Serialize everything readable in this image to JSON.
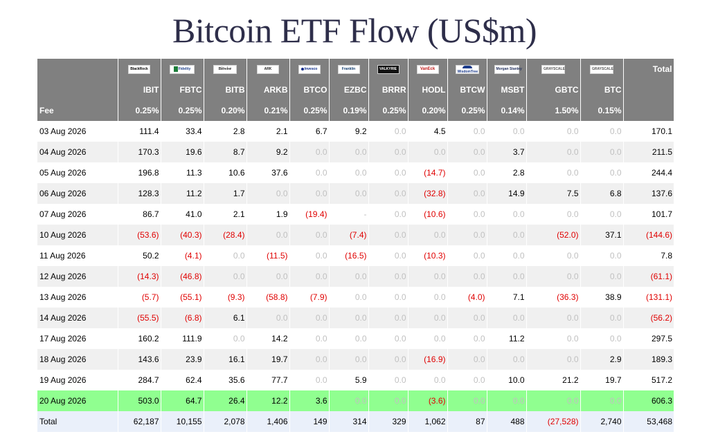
{
  "title": "Bitcoin ETF Flow (US$m)",
  "header": {
    "logos": [
      {
        "icon": "blackrock-logo",
        "text": "BlackRock"
      },
      {
        "icon": "fidelity-logo",
        "text": "Fidelity"
      },
      {
        "icon": "bitwise-logo",
        "text": "Bitwise"
      },
      {
        "icon": "ark-logo",
        "text": "ARK"
      },
      {
        "icon": "invesco-logo",
        "text": "Invesco"
      },
      {
        "icon": "franklin-templeton-logo",
        "text": "Franklin"
      },
      {
        "icon": "valkyrie-logo",
        "text": "VALKYRIE"
      },
      {
        "icon": "vaneck-logo",
        "text": "VanEck"
      },
      {
        "icon": "wisdomtree-logo",
        "text": "WisdomTree"
      },
      {
        "icon": "morgan-stanley-logo",
        "text": "Morgan Stanley"
      },
      {
        "icon": "grayscale-logo",
        "text": "GRAYSCALE"
      },
      {
        "icon": "grayscale-logo",
        "text": "GRAYSCALE"
      }
    ],
    "total_label": "Total",
    "tickers": [
      "IBIT",
      "FBTC",
      "BITB",
      "ARKB",
      "BTCO",
      "EZBC",
      "BRRR",
      "HODL",
      "BTCW",
      "MSBT",
      "GBTC",
      "BTC"
    ],
    "fee_label": "Fee",
    "fees": [
      "0.25%",
      "0.25%",
      "0.20%",
      "0.21%",
      "0.25%",
      "0.19%",
      "0.25%",
      "0.20%",
      "0.25%",
      "0.14%",
      "1.50%",
      "0.15%"
    ]
  },
  "rows": [
    {
      "date": "03 Aug 2026",
      "values": [
        "111.4",
        "33.4",
        "2.8",
        "2.1",
        "6.7",
        "9.2",
        "0.0",
        "4.5",
        "0.0",
        "0.0",
        "0.0",
        "0.0"
      ],
      "total": "170.1"
    },
    {
      "date": "04 Aug 2026",
      "values": [
        "170.3",
        "19.6",
        "8.7",
        "9.2",
        "0.0",
        "0.0",
        "0.0",
        "0.0",
        "0.0",
        "3.7",
        "0.0",
        "0.0"
      ],
      "total": "211.5"
    },
    {
      "date": "05 Aug 2026",
      "values": [
        "196.8",
        "11.3",
        "10.6",
        "37.6",
        "0.0",
        "0.0",
        "0.0",
        "(14.7)",
        "0.0",
        "2.8",
        "0.0",
        "0.0"
      ],
      "total": "244.4"
    },
    {
      "date": "06 Aug 2026",
      "values": [
        "128.3",
        "11.2",
        "1.7",
        "0.0",
        "0.0",
        "0.0",
        "0.0",
        "(32.8)",
        "0.0",
        "14.9",
        "7.5",
        "6.8"
      ],
      "total": "137.6"
    },
    {
      "date": "07 Aug 2026",
      "values": [
        "86.7",
        "41.0",
        "2.1",
        "1.9",
        "(19.4)",
        "-",
        "0.0",
        "(10.6)",
        "0.0",
        "0.0",
        "0.0",
        "0.0"
      ],
      "total": "101.7"
    },
    {
      "date": "10 Aug 2026",
      "values": [
        "(53.6)",
        "(40.3)",
        "(28.4)",
        "0.0",
        "0.0",
        "(7.4)",
        "0.0",
        "0.0",
        "0.0",
        "0.0",
        "(52.0)",
        "37.1"
      ],
      "total": "(144.6)"
    },
    {
      "date": "11 Aug 2026",
      "values": [
        "50.2",
        "(4.1)",
        "0.0",
        "(11.5)",
        "0.0",
        "(16.5)",
        "0.0",
        "(10.3)",
        "0.0",
        "0.0",
        "0.0",
        "0.0"
      ],
      "total": "7.8"
    },
    {
      "date": "12 Aug 2026",
      "values": [
        "(14.3)",
        "(46.8)",
        "0.0",
        "0.0",
        "0.0",
        "0.0",
        "0.0",
        "0.0",
        "0.0",
        "0.0",
        "0.0",
        "0.0"
      ],
      "total": "(61.1)"
    },
    {
      "date": "13 Aug 2026",
      "values": [
        "(5.7)",
        "(55.1)",
        "(9.3)",
        "(58.8)",
        "(7.9)",
        "0.0",
        "0.0",
        "0.0",
        "(4.0)",
        "7.1",
        "(36.3)",
        "38.9"
      ],
      "total": "(131.1)"
    },
    {
      "date": "14 Aug 2026",
      "values": [
        "(55.5)",
        "(6.8)",
        "6.1",
        "0.0",
        "0.0",
        "0.0",
        "0.0",
        "0.0",
        "0.0",
        "0.0",
        "0.0",
        "0.0"
      ],
      "total": "(56.2)"
    },
    {
      "date": "17 Aug 2026",
      "values": [
        "160.2",
        "111.9",
        "0.0",
        "14.2",
        "0.0",
        "0.0",
        "0.0",
        "0.0",
        "0.0",
        "11.2",
        "0.0",
        "0.0"
      ],
      "total": "297.5"
    },
    {
      "date": "18 Aug 2026",
      "values": [
        "143.6",
        "23.9",
        "16.1",
        "19.7",
        "0.0",
        "0.0",
        "0.0",
        "(16.9)",
        "0.0",
        "0.0",
        "0.0",
        "2.9"
      ],
      "total": "189.3"
    },
    {
      "date": "19 Aug 2026",
      "values": [
        "284.7",
        "62.4",
        "35.6",
        "77.7",
        "0.0",
        "5.9",
        "0.0",
        "0.0",
        "0.0",
        "10.0",
        "21.2",
        "19.7"
      ],
      "total": "517.2"
    },
    {
      "date": "20 Aug 2026",
      "values": [
        "503.0",
        "64.7",
        "26.4",
        "12.2",
        "3.6",
        "0.0",
        "0.0",
        "(3.6)",
        "0.0",
        "0.0",
        "0.0",
        "0.0"
      ],
      "total": "606.3",
      "highlight": true
    }
  ],
  "total_row": {
    "label": "Total",
    "values": [
      "62,187",
      "10,155",
      "2,078",
      "1,406",
      "149",
      "314",
      "329",
      "1,062",
      "87",
      "488",
      "(27,528)",
      "2,740"
    ],
    "total": "53,468"
  },
  "colors": {
    "header_bg": "#808080",
    "row_alt": "#f0f0f0",
    "highlight_row": "#90ff90",
    "total_row": "#eaf0fa",
    "negative": "#e00000",
    "zero": "#c0c0c0",
    "title": "#2e2e4a"
  }
}
